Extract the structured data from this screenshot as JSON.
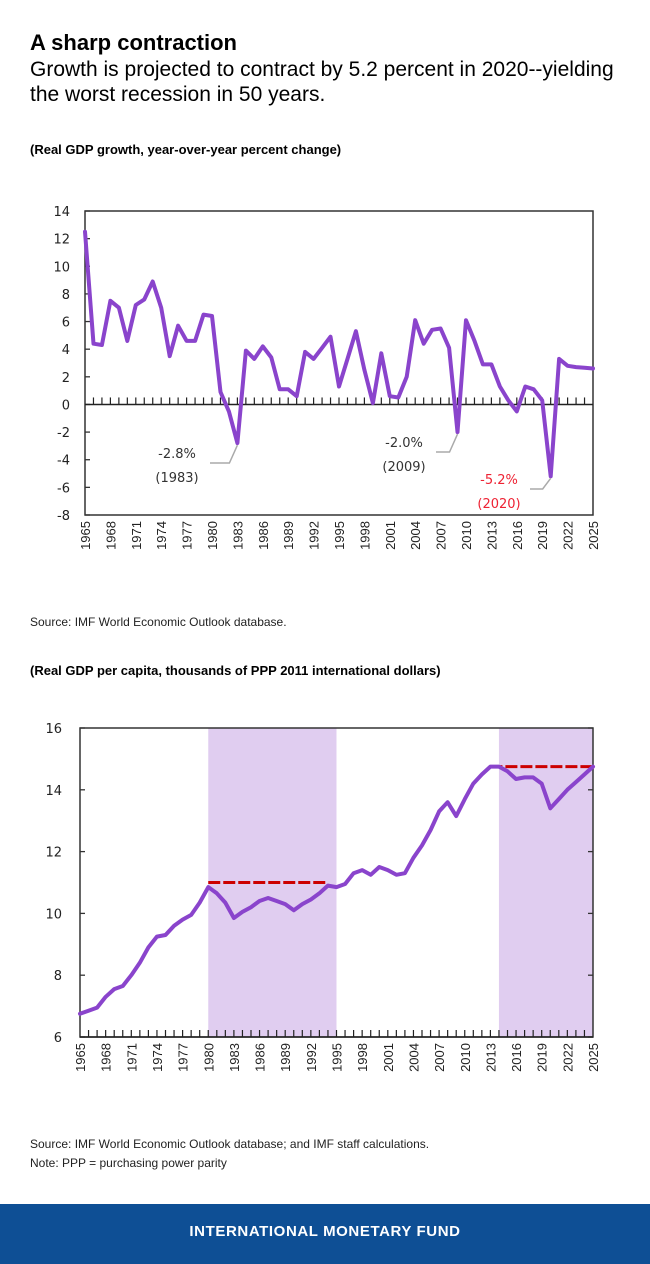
{
  "header": {
    "title": "A sharp contraction",
    "subtitle": "Growth is projected to contract by 5.2 percent in 2020--yielding the worst recession in 50 years."
  },
  "chart1": {
    "label": "(Real GDP growth, year-over-year percent change)",
    "source": "Source: IMF World Economic Outlook database."
  },
  "chart2": {
    "label": "(Real GDP per capita, thousands of PPP 2011 international dollars)",
    "source": "Source: IMF World Economic Outlook database; and IMF staff calculations.",
    "note": "Note: PPP = purchasing power parity"
  },
  "footer": {
    "text": "INTERNATIONAL MONETARY FUND"
  },
  "colors": {
    "line": "#8a44cc",
    "shade": "#e0cdf0",
    "dash": "#cc0000",
    "annot_red": "#ee2233",
    "annot_gray": "#333333",
    "footer": "#0e4f95"
  },
  "chart_data": [
    {
      "type": "line",
      "title": "(Real GDP growth, year-over-year percent change)",
      "xlabel": "",
      "ylabel": "",
      "ylim": [
        -8,
        14
      ],
      "yticks": [
        14,
        12,
        10,
        8,
        6,
        4,
        2,
        0,
        -2,
        -4,
        -6,
        -8
      ],
      "xlim": [
        1965,
        2025
      ],
      "xtick_labels": [
        "1965",
        "1968",
        "1971",
        "1974",
        "1977",
        "1980",
        "1983",
        "1986",
        "1989",
        "1992",
        "1995",
        "1998",
        "2001",
        "2004",
        "2007",
        "2010",
        "2013",
        "2016",
        "2019",
        "2022",
        "2025"
      ],
      "grid": false,
      "series": [
        {
          "name": "Real GDP growth",
          "x": [
            1965,
            1966,
            1967,
            1968,
            1969,
            1970,
            1971,
            1972,
            1973,
            1974,
            1975,
            1976,
            1977,
            1978,
            1979,
            1980,
            1981,
            1982,
            1983,
            1984,
            1985,
            1986,
            1987,
            1988,
            1989,
            1990,
            1991,
            1992,
            1993,
            1994,
            1995,
            1996,
            1997,
            1998,
            1999,
            2000,
            2001,
            2002,
            2003,
            2004,
            2005,
            2006,
            2007,
            2008,
            2009,
            2010,
            2011,
            2012,
            2013,
            2014,
            2015,
            2016,
            2017,
            2018,
            2019,
            2020,
            2021,
            2022,
            2023,
            2024,
            2025
          ],
          "values": [
            12.5,
            4.4,
            4.3,
            7.5,
            7.0,
            4.6,
            7.2,
            7.6,
            8.9,
            7.0,
            3.5,
            5.7,
            4.6,
            4.6,
            6.5,
            6.4,
            0.9,
            -0.5,
            -2.8,
            3.9,
            3.3,
            4.2,
            3.4,
            1.1,
            1.1,
            0.6,
            3.8,
            3.3,
            4.1,
            4.9,
            1.3,
            3.3,
            5.3,
            2.5,
            0.1,
            3.7,
            0.6,
            0.5,
            2.0,
            6.1,
            4.4,
            5.4,
            5.5,
            4.1,
            -2.0,
            6.1,
            4.6,
            2.9,
            2.9,
            1.3,
            0.3,
            -0.5,
            1.3,
            1.1,
            0.3,
            -5.2,
            3.3,
            2.8,
            2.7,
            2.65,
            2.6
          ]
        }
      ],
      "annotations": [
        {
          "value": "-2.8%",
          "year": "(1983)",
          "color": "gray"
        },
        {
          "value": "-2.0%",
          "year": "(2009)",
          "color": "gray"
        },
        {
          "value": "-5.2%",
          "year": "(2020)",
          "color": "red"
        }
      ]
    },
    {
      "type": "line",
      "title": "(Real GDP per capita, thousands of PPP 2011 international dollars)",
      "xlabel": "",
      "ylabel": "",
      "ylim": [
        6,
        16
      ],
      "yticks": [
        16,
        14,
        12,
        10,
        8,
        6
      ],
      "xlim": [
        1965,
        2025
      ],
      "xtick_labels": [
        "1965",
        "1968",
        "1971",
        "1974",
        "1977",
        "1980",
        "1983",
        "1986",
        "1989",
        "1992",
        "1995",
        "1998",
        "2001",
        "2004",
        "2007",
        "2010",
        "2013",
        "2016",
        "2019",
        "2022",
        "2025"
      ],
      "grid": false,
      "shaded_periods": [
        [
          1980,
          1995
        ],
        [
          2014,
          2025
        ]
      ],
      "reference_lines": [
        {
          "value": 11.0,
          "from": 1980,
          "to": 1994
        },
        {
          "value": 14.75,
          "from": 2013,
          "to": 2025
        }
      ],
      "series": [
        {
          "name": "Real GDP per capita",
          "x": [
            1965,
            1966,
            1967,
            1968,
            1969,
            1970,
            1971,
            1972,
            1973,
            1974,
            1975,
            1976,
            1977,
            1978,
            1979,
            1980,
            1981,
            1982,
            1983,
            1984,
            1985,
            1986,
            1987,
            1988,
            1989,
            1990,
            1991,
            1992,
            1993,
            1994,
            1995,
            1996,
            1997,
            1998,
            1999,
            2000,
            2001,
            2002,
            2003,
            2004,
            2005,
            2006,
            2007,
            2008,
            2009,
            2010,
            2011,
            2012,
            2013,
            2014,
            2015,
            2016,
            2017,
            2018,
            2019,
            2020,
            2021,
            2022,
            2023,
            2024,
            2025
          ],
          "values": [
            6.75,
            6.85,
            6.95,
            7.3,
            7.55,
            7.65,
            8.0,
            8.4,
            8.9,
            9.25,
            9.3,
            9.6,
            9.8,
            9.95,
            10.35,
            10.85,
            10.65,
            10.35,
            9.85,
            10.05,
            10.2,
            10.4,
            10.5,
            10.4,
            10.3,
            10.1,
            10.3,
            10.45,
            10.65,
            10.9,
            10.85,
            10.95,
            11.3,
            11.4,
            11.25,
            11.5,
            11.4,
            11.25,
            11.3,
            11.8,
            12.2,
            12.7,
            13.3,
            13.6,
            13.15,
            13.7,
            14.2,
            14.5,
            14.75,
            14.75,
            14.6,
            14.35,
            14.4,
            14.4,
            14.2,
            13.4,
            13.7,
            14.0,
            14.25,
            14.5,
            14.75
          ]
        }
      ]
    }
  ]
}
